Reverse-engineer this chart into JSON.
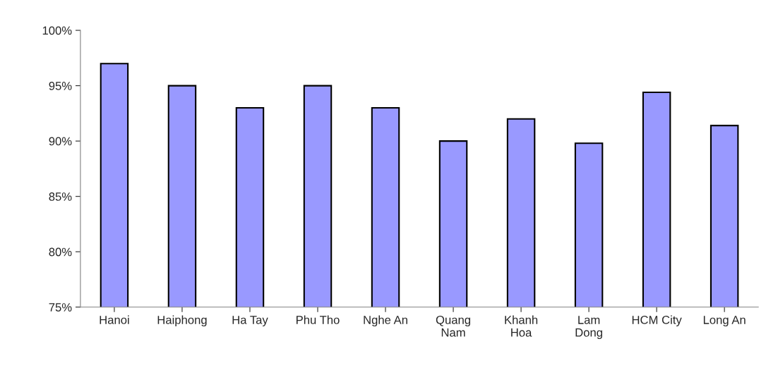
{
  "chart_data": {
    "type": "bar",
    "categories": [
      "Hanoi",
      "Haiphong",
      "Ha Tay",
      "Phu Tho",
      "Nghe An",
      "Quang\nNam",
      "Khanh\nHoa",
      "Lam\nDong",
      "HCM City",
      "Long An"
    ],
    "values": [
      97,
      95,
      93,
      95,
      93,
      90,
      92,
      89.8,
      94.4,
      91.4
    ],
    "color": "#9999ff",
    "ylim": [
      75,
      100
    ],
    "yticks": [
      {
        "value": 75,
        "label": "75%"
      },
      {
        "value": 80,
        "label": "80%"
      },
      {
        "value": 85,
        "label": "85%"
      },
      {
        "value": 90,
        "label": "90%"
      },
      {
        "value": 95,
        "label": "95%"
      },
      {
        "value": 100,
        "label": "100%"
      }
    ],
    "grid": false,
    "legend": false
  }
}
